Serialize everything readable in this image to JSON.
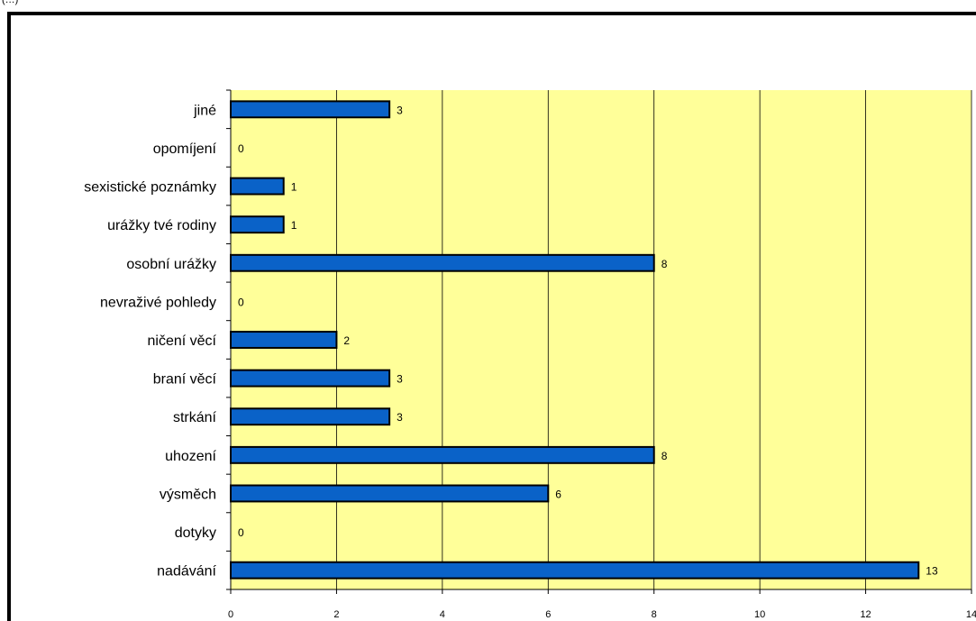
{
  "page": {
    "top_clipped_text": "(…)"
  },
  "chart_data": {
    "type": "bar",
    "orientation": "horizontal",
    "categories": [
      "nadávání",
      "dotyky",
      "výsměch",
      "uhození",
      "strkání",
      "braní věcí",
      "ničení věcí",
      "nevraživé pohledy",
      "osobní urážky",
      "urážky tvé rodiny",
      "sexistické poznámky",
      "opomíjení",
      "jiné"
    ],
    "values": [
      13,
      0,
      6,
      8,
      3,
      3,
      2,
      0,
      8,
      1,
      1,
      0,
      3
    ],
    "xlim": [
      0,
      14
    ],
    "x_ticks": [
      0,
      2,
      4,
      6,
      8,
      10,
      12,
      14
    ],
    "title": "",
    "xlabel": "",
    "ylabel": "",
    "grid": "vertical",
    "legend": "none",
    "data_labels": true,
    "colors": {
      "bar_fill": "#0A62C8",
      "bar_stroke": "#000000",
      "plot_background": "#FFFF99",
      "gridline": "#000000",
      "frame": "#000000"
    }
  }
}
